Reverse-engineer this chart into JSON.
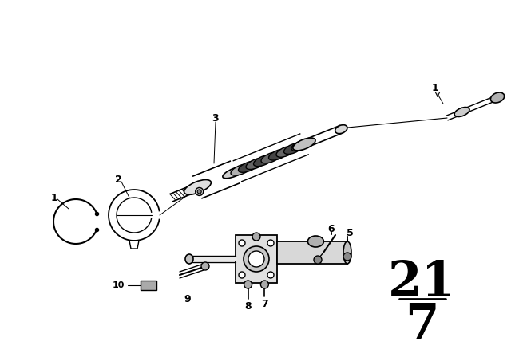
{
  "bg_color": "#ffffff",
  "line_color": "#000000",
  "figsize": [
    6.4,
    4.48
  ],
  "dpi": 100,
  "page_top": "21",
  "page_bot": "7"
}
